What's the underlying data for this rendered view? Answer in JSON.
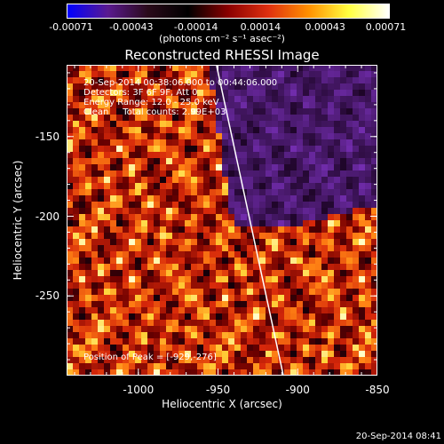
{
  "colorbar": {
    "colors": [
      "#0000ff",
      "#5a1a90",
      "#2a0a1a",
      "#000000",
      "#8a0000",
      "#e03010",
      "#ff9000",
      "#ffff40",
      "#ffffff"
    ],
    "tick_labels": [
      "-0.00071",
      "-0.00043",
      "-0.00014",
      "0.00014",
      "0.00043",
      "0.00071"
    ],
    "unit_label": "(photons cm⁻² s⁻¹ asec⁻²)"
  },
  "title": "Reconstructed RHESSI Image",
  "info": {
    "time_range": "20-Sep-2014 00:38:06.000 to 00:44:06.000",
    "detectors": "Detectors: 3F 6F 9F, Att 0",
    "energy": "Energy Range: 12.0 - 25.0 keV",
    "clean": "Clean     Total counts: 2.99E+03",
    "peak": "Position of Peak = [-929,-276]"
  },
  "axes": {
    "xlabel": "Heliocentric X (arcsec)",
    "ylabel": "Heliocentric Y (arcsec)",
    "x_ticks": [
      "-1000",
      "-950",
      "-900",
      "-850"
    ],
    "y_ticks": [
      "-150",
      "-200",
      "-250"
    ],
    "xlim": [
      -1045,
      -850
    ],
    "ylim": [
      -300,
      -105
    ]
  },
  "limb_line": {
    "color": "#ffffff",
    "points": [
      [
        -951,
        -105
      ],
      [
        -909,
        -300
      ]
    ]
  },
  "footer_timestamp": "20-Sep-2014 08:41"
}
